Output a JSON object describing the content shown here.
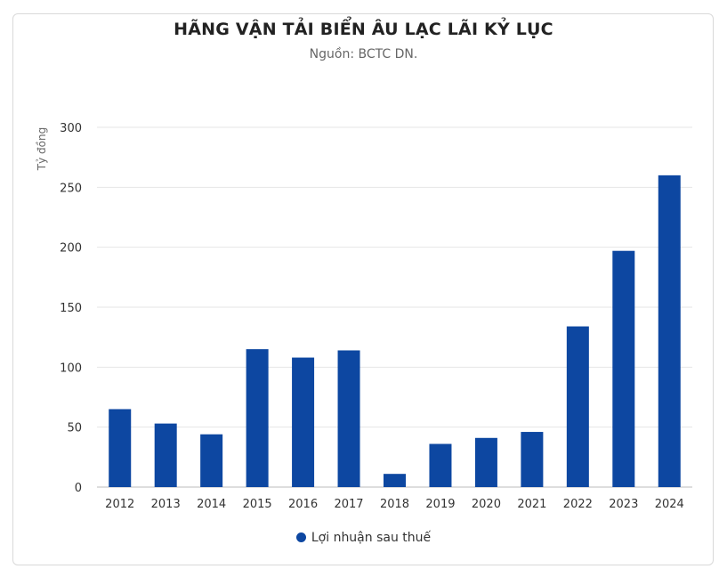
{
  "chart_data": {
    "type": "bar",
    "title": "HÃNG VẬN TẢI BIỂN ÂU LẠC LÃI KỶ LỤC",
    "subtitle": "Nguồn: BCTC DN.",
    "ylabel": "Tỷ đồng",
    "xlabel": "",
    "categories": [
      "2012",
      "2013",
      "2014",
      "2015",
      "2016",
      "2017",
      "2018",
      "2019",
      "2020",
      "2021",
      "2022",
      "2023",
      "2024"
    ],
    "series": [
      {
        "name": "Lợi nhuận sau thuế",
        "values": [
          65,
          53,
          44,
          115,
          108,
          114,
          11,
          36,
          41,
          46,
          134,
          197,
          260
        ]
      }
    ],
    "ylim": [
      0,
      300
    ],
    "yticks": [
      "0",
      "50",
      "100",
      "150",
      "200",
      "250",
      "300"
    ],
    "grid": true,
    "legend_position": "bottom",
    "bar_color": "#0d47a1"
  }
}
